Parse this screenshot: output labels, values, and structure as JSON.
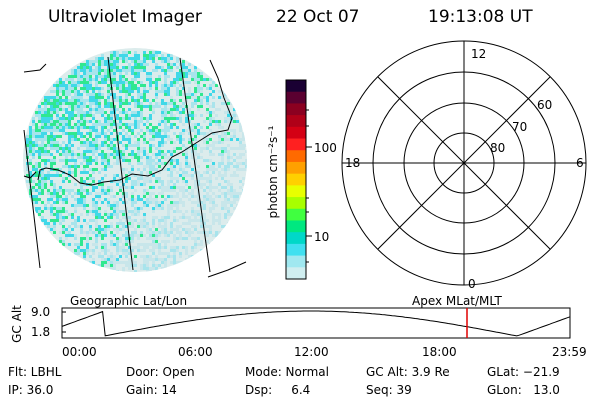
{
  "header": {
    "title": "Ultraviolet Imager",
    "date": "22 Oct 07",
    "time": "19:13:08 UT"
  },
  "colorbar": {
    "unit_label": "photon cm⁻²s⁻¹",
    "ticks": [
      "100",
      "10"
    ],
    "colors": [
      "#1a0033",
      "#5a0030",
      "#8b0020",
      "#b00018",
      "#d40014",
      "#ff2020",
      "#ff6a00",
      "#ffa000",
      "#ffd000",
      "#e8ff00",
      "#a8ff00",
      "#40ff40",
      "#00e880",
      "#00d8c8",
      "#40e0f0",
      "#a0e8f0",
      "#d0eef0"
    ]
  },
  "polar": {
    "clock_labels": {
      "top": "12",
      "bottom": "0",
      "left": "18",
      "right": "6"
    },
    "lat_labels": [
      "60",
      "70",
      "80"
    ]
  },
  "panel_labels": {
    "left": "Geographic Lat/Lon",
    "right": "Apex MLat/MLT"
  },
  "alt_plot": {
    "ylabel": "GC Alt",
    "yticks": [
      "9.0",
      "1.8"
    ],
    "xticks": [
      "00:00",
      "06:00",
      "12:00",
      "18:00",
      "23:59"
    ],
    "current_time_marker": "19:13"
  },
  "info": {
    "flt": "Flt: LBHL",
    "ip": "IP: 36.0",
    "door": "Door: Open",
    "gain": "Gain: 14",
    "mode": "Mode: Normal",
    "dsp": "Dsp:     6.4",
    "gcalt": "GC Alt: 3.9 Re",
    "seq": "Seq: 39",
    "glat": "GLat: −21.9",
    "glon": "GLon:   13.0"
  }
}
